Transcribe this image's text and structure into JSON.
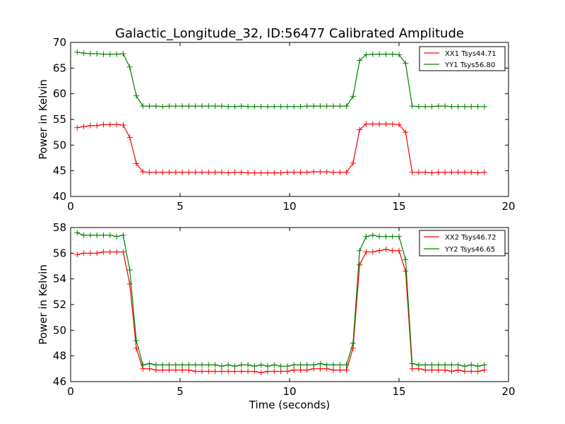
{
  "chart_data": [
    {
      "type": "line",
      "title": "Galactic_Longitude_32, ID:56477 Calibrated Amplitude",
      "xlabel": "",
      "ylabel": "Power in Kelvin",
      "xlim": [
        0,
        20
      ],
      "ylim": [
        40,
        70
      ],
      "xticks": [
        "0",
        "5",
        "10",
        "15",
        "20"
      ],
      "yticks": [
        "40",
        "45",
        "50",
        "55",
        "60",
        "65",
        "70"
      ],
      "legend_position": "top-right",
      "x": [
        0.3,
        0.6,
        0.9,
        1.2,
        1.5,
        1.8,
        2.1,
        2.4,
        2.7,
        3.0,
        3.3,
        3.6,
        3.9,
        4.2,
        4.5,
        4.8,
        5.1,
        5.4,
        5.7,
        6.0,
        6.3,
        6.6,
        6.9,
        7.2,
        7.5,
        7.8,
        8.1,
        8.4,
        8.7,
        9.0,
        9.3,
        9.6,
        9.9,
        10.2,
        10.5,
        10.8,
        11.1,
        11.4,
        11.7,
        12.0,
        12.3,
        12.6,
        12.9,
        13.2,
        13.5,
        13.8,
        14.1,
        14.4,
        14.7,
        15.0,
        15.3,
        15.6,
        15.9,
        16.2,
        16.5,
        16.8,
        17.1,
        17.4,
        17.7,
        18.0,
        18.3,
        18.6,
        18.9
      ],
      "series": [
        {
          "name": "XX1 Tsys44.71",
          "color": "#ff0000",
          "values": [
            53.4,
            53.6,
            53.8,
            53.8,
            54.0,
            54.0,
            54.0,
            53.9,
            51.5,
            46.4,
            44.8,
            44.7,
            44.7,
            44.7,
            44.7,
            44.7,
            44.7,
            44.7,
            44.7,
            44.7,
            44.7,
            44.7,
            44.7,
            44.6,
            44.7,
            44.7,
            44.6,
            44.6,
            44.6,
            44.6,
            44.6,
            44.6,
            44.7,
            44.7,
            44.7,
            44.7,
            44.8,
            44.8,
            44.8,
            44.7,
            44.7,
            44.7,
            46.5,
            53.0,
            54.1,
            54.1,
            54.1,
            54.1,
            54.1,
            54.0,
            52.5,
            44.7,
            44.7,
            44.7,
            44.6,
            44.7,
            44.7,
            44.7,
            44.7,
            44.7,
            44.7,
            44.6,
            44.7
          ]
        },
        {
          "name": "YY1 Tsys56.80",
          "color": "#008000",
          "values": [
            68.1,
            67.9,
            67.8,
            67.8,
            67.7,
            67.7,
            67.7,
            67.8,
            65.2,
            59.6,
            57.6,
            57.6,
            57.6,
            57.5,
            57.6,
            57.6,
            57.6,
            57.6,
            57.6,
            57.6,
            57.6,
            57.6,
            57.6,
            57.5,
            57.5,
            57.6,
            57.5,
            57.5,
            57.5,
            57.5,
            57.5,
            57.5,
            57.5,
            57.5,
            57.5,
            57.6,
            57.6,
            57.6,
            57.6,
            57.6,
            57.6,
            57.6,
            59.5,
            66.5,
            67.6,
            67.7,
            67.7,
            67.7,
            67.7,
            67.6,
            65.9,
            57.6,
            57.5,
            57.5,
            57.5,
            57.6,
            57.6,
            57.5,
            57.5,
            57.5,
            57.5,
            57.5,
            57.5
          ]
        }
      ]
    },
    {
      "type": "line",
      "title": "",
      "xlabel": "Time (seconds)",
      "ylabel": "Power in Kelvin",
      "xlim": [
        0,
        20
      ],
      "ylim": [
        46,
        58
      ],
      "xticks": [
        "0",
        "5",
        "10",
        "15",
        "20"
      ],
      "yticks": [
        "46",
        "48",
        "50",
        "52",
        "54",
        "56",
        "58"
      ],
      "legend_position": "top-right",
      "x": [
        0.3,
        0.6,
        0.9,
        1.2,
        1.5,
        1.8,
        2.1,
        2.4,
        2.7,
        3.0,
        3.3,
        3.6,
        3.9,
        4.2,
        4.5,
        4.8,
        5.1,
        5.4,
        5.7,
        6.0,
        6.3,
        6.6,
        6.9,
        7.2,
        7.5,
        7.8,
        8.1,
        8.4,
        8.7,
        9.0,
        9.3,
        9.6,
        9.9,
        10.2,
        10.5,
        10.8,
        11.1,
        11.4,
        11.7,
        12.0,
        12.3,
        12.6,
        12.9,
        13.2,
        13.5,
        13.8,
        14.1,
        14.4,
        14.7,
        15.0,
        15.3,
        15.6,
        15.9,
        16.2,
        16.5,
        16.8,
        17.1,
        17.4,
        17.7,
        18.0,
        18.3,
        18.6,
        18.9
      ],
      "series": [
        {
          "name": "XX2 Tsys46.72",
          "color": "#ff0000",
          "values": [
            55.9,
            56.0,
            56.0,
            56.0,
            56.1,
            56.1,
            56.1,
            56.1,
            53.6,
            48.6,
            47.0,
            47.0,
            46.9,
            46.9,
            46.9,
            46.9,
            46.9,
            46.9,
            46.8,
            46.8,
            46.8,
            46.8,
            46.8,
            46.8,
            46.8,
            46.8,
            46.8,
            46.8,
            46.7,
            46.8,
            46.8,
            46.8,
            46.8,
            46.9,
            46.9,
            46.9,
            47.0,
            47.0,
            47.0,
            46.9,
            46.9,
            46.9,
            48.6,
            55.1,
            56.1,
            56.1,
            56.2,
            56.3,
            56.2,
            56.2,
            54.6,
            47.0,
            47.0,
            46.9,
            46.9,
            46.9,
            46.9,
            46.8,
            46.9,
            46.8,
            46.8,
            46.8,
            46.9
          ]
        },
        {
          "name": "YY2 Tsys46.65",
          "color": "#008000",
          "values": [
            57.6,
            57.4,
            57.4,
            57.4,
            57.4,
            57.4,
            57.3,
            57.4,
            54.7,
            49.2,
            47.3,
            47.4,
            47.3,
            47.3,
            47.3,
            47.3,
            47.3,
            47.3,
            47.3,
            47.3,
            47.3,
            47.3,
            47.2,
            47.3,
            47.2,
            47.3,
            47.3,
            47.2,
            47.3,
            47.2,
            47.3,
            47.2,
            47.2,
            47.3,
            47.3,
            47.3,
            47.3,
            47.4,
            47.3,
            47.3,
            47.3,
            47.3,
            49.0,
            56.2,
            57.3,
            57.4,
            57.3,
            57.3,
            57.3,
            57.3,
            55.5,
            47.4,
            47.3,
            47.3,
            47.3,
            47.3,
            47.3,
            47.3,
            47.3,
            47.2,
            47.3,
            47.2,
            47.3
          ]
        }
      ]
    }
  ]
}
